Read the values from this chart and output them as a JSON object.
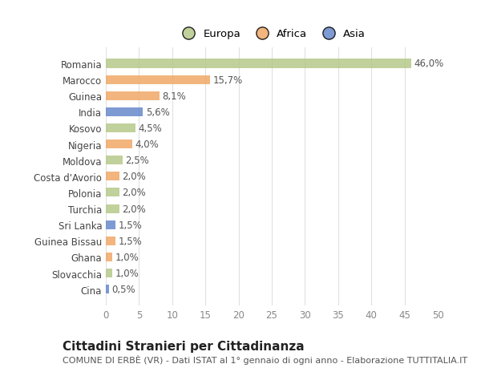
{
  "categories": [
    "Cina",
    "Slovacchia",
    "Ghana",
    "Guinea Bissau",
    "Sri Lanka",
    "Turchia",
    "Polonia",
    "Costa d'Avorio",
    "Moldova",
    "Nigeria",
    "Kosovo",
    "India",
    "Guinea",
    "Marocco",
    "Romania"
  ],
  "values": [
    0.5,
    1.0,
    1.0,
    1.5,
    1.5,
    2.0,
    2.0,
    2.0,
    2.5,
    4.0,
    4.5,
    5.6,
    8.1,
    15.7,
    46.0
  ],
  "labels": [
    "0,5%",
    "1,0%",
    "1,0%",
    "1,5%",
    "1,5%",
    "2,0%",
    "2,0%",
    "2,0%",
    "2,5%",
    "4,0%",
    "4,5%",
    "5,6%",
    "8,1%",
    "15,7%",
    "46,0%"
  ],
  "continents": [
    "Asia",
    "Europa",
    "Africa",
    "Africa",
    "Asia",
    "Europa",
    "Europa",
    "Africa",
    "Europa",
    "Africa",
    "Europa",
    "Asia",
    "Africa",
    "Africa",
    "Europa"
  ],
  "colors": {
    "Europa": "#b5c98a",
    "Africa": "#f0a868",
    "Asia": "#6688cc"
  },
  "legend_labels": [
    "Europa",
    "Africa",
    "Asia"
  ],
  "legend_colors": [
    "#b5c98a",
    "#f0a868",
    "#6688cc"
  ],
  "xlim": [
    0,
    50
  ],
  "xticks": [
    0,
    5,
    10,
    15,
    20,
    25,
    30,
    35,
    40,
    45,
    50
  ],
  "title": "Cittadini Stranieri per Cittadinanza",
  "subtitle": "COMUNE DI ERBÈ (VR) - Dati ISTAT al 1° gennaio di ogni anno - Elaborazione TUTTITALIA.IT",
  "bg_color": "#ffffff",
  "grid_color": "#e0e0e0",
  "bar_height": 0.55,
  "label_fontsize": 8.5,
  "tick_fontsize": 8.5,
  "title_fontsize": 11,
  "subtitle_fontsize": 8
}
